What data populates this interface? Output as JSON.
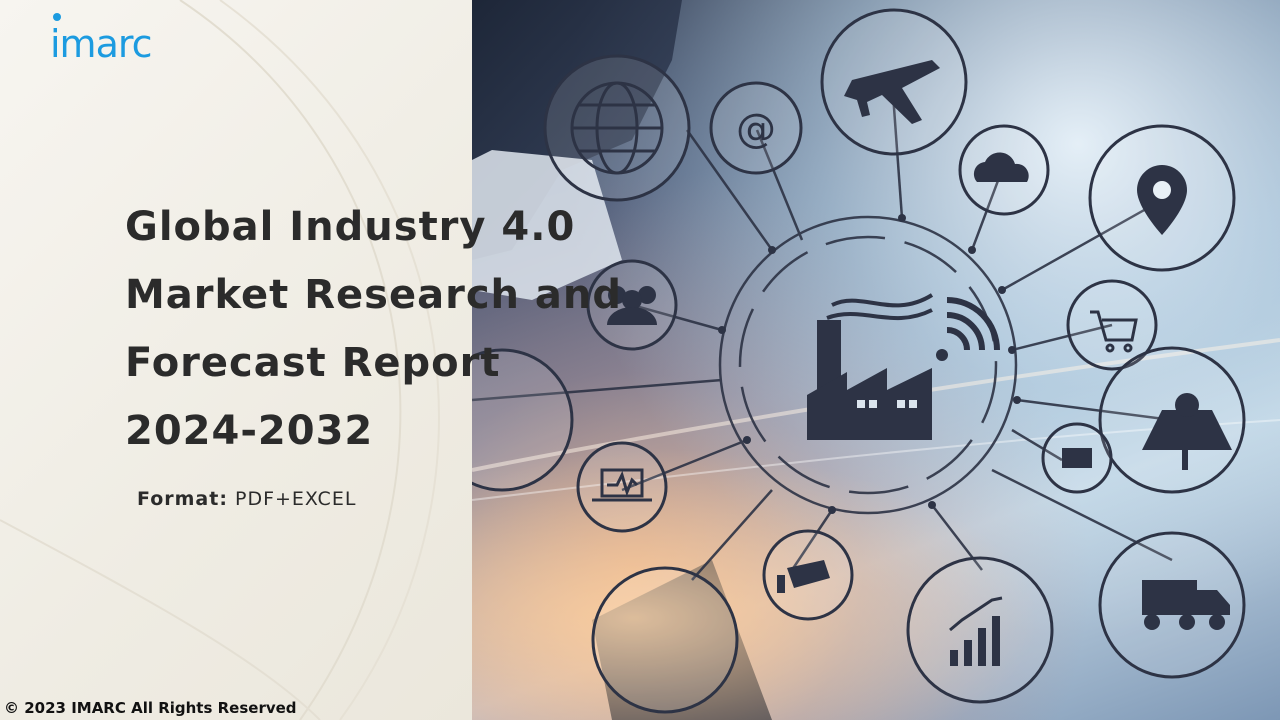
{
  "brand": {
    "logo_text": "imarc",
    "logo_color": "#1c9be0"
  },
  "report": {
    "title": "Global Industry 4.0 Market Research and Forecast Report 2024-2032",
    "format_label": "Format:",
    "format_value": "PDF+EXCEL"
  },
  "footer": {
    "copyright": "© 2023 IMARC All Rights Reserved"
  },
  "hero": {
    "icons": [
      "globe-icon",
      "at-sign-icon",
      "airplane-icon",
      "cloud-icon",
      "location-pin-icon",
      "people-icon",
      "shopping-cart-icon",
      "factory-icon",
      "wifi-icon",
      "robot-arm-icon",
      "solar-panel-icon",
      "mail-icon",
      "laptop-chart-icon",
      "security-camera-icon",
      "bar-chart-icon",
      "truck-icon"
    ]
  }
}
